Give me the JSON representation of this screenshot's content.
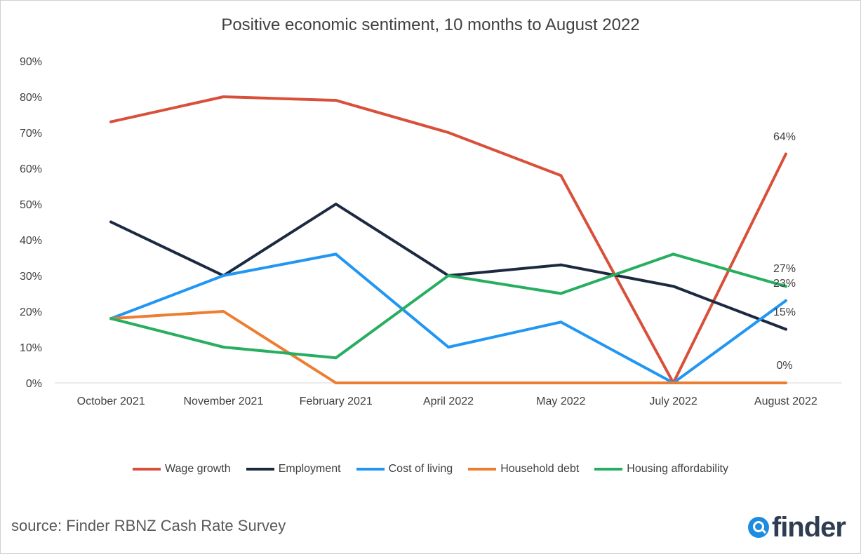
{
  "chart_data": {
    "type": "line",
    "title": "Positive economic sentiment, 10 months to August 2022",
    "categories": [
      "October 2021",
      "November 2021",
      "February 2021",
      "April 2022",
      "May 2022",
      "July 2022",
      "August 2022"
    ],
    "yticks": [
      "0%",
      "10%",
      "20%",
      "30%",
      "40%",
      "50%",
      "60%",
      "70%",
      "80%",
      "90%"
    ],
    "ylim": [
      0,
      90
    ],
    "grid": false,
    "legend_position": "bottom",
    "series": [
      {
        "name": "Wage growth",
        "color": "#d9503a",
        "values": [
          73,
          80,
          79,
          70,
          58,
          0,
          64
        ]
      },
      {
        "name": "Employment",
        "color": "#1b2a41",
        "values": [
          45,
          30,
          50,
          30,
          33,
          27,
          15
        ]
      },
      {
        "name": "Cost of living",
        "color": "#2196f3",
        "values": [
          18,
          30,
          36,
          10,
          17,
          0,
          23
        ]
      },
      {
        "name": "Household debt",
        "color": "#ed7d31",
        "values": [
          18,
          20,
          0,
          0,
          0,
          0,
          0
        ]
      },
      {
        "name": "Housing affordability",
        "color": "#27ae60",
        "values": [
          18,
          10,
          7,
          30,
          25,
          36,
          27
        ]
      }
    ],
    "data_labels": [
      "64%",
      "27%",
      "23%",
      "15%",
      "0%"
    ]
  },
  "footer": {
    "source": "source: Finder RBNZ Cash Rate Survey",
    "logo_text": "finder",
    "logo_icon": "search-icon"
  }
}
